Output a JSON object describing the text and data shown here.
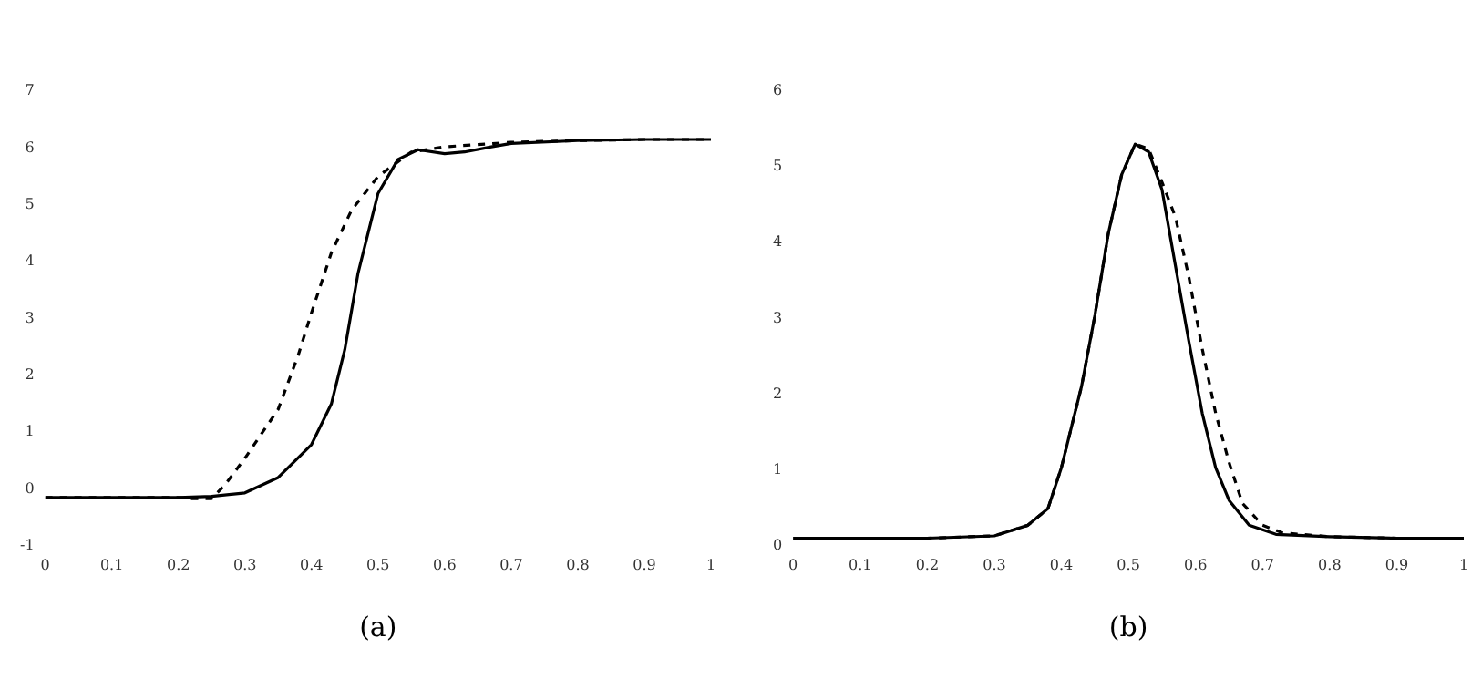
{
  "chart_data": [
    {
      "type": "line",
      "xlabel": "(a)",
      "xlim": [
        0,
        1
      ],
      "xticks": [
        0,
        0.1,
        0.2,
        0.3,
        0.4,
        0.5,
        0.6,
        0.7,
        0.8,
        0.9,
        1
      ],
      "ylim": [
        -1,
        7
      ],
      "yticks": [
        -1,
        0,
        1,
        2,
        3,
        4,
        5,
        6,
        7
      ],
      "grid": false,
      "legend": false,
      "marker": "none",
      "series": [
        {
          "color": "#000000",
          "line_style": "solid",
          "x": [
            0,
            0.1,
            0.2,
            0.25,
            0.3,
            0.35,
            0.4,
            0.43,
            0.45,
            0.47,
            0.5,
            0.53,
            0.56,
            0.6,
            0.63,
            0.67,
            0.7,
            0.8,
            0.9,
            1
          ],
          "values": [
            -0.15,
            -0.15,
            -0.15,
            -0.13,
            -0.07,
            0.2,
            0.78,
            1.5,
            2.45,
            3.8,
            5.2,
            5.8,
            5.97,
            5.9,
            5.93,
            6.02,
            6.08,
            6.13,
            6.15,
            6.15
          ]
        },
        {
          "color": "#000000",
          "line_style": "dashed",
          "x": [
            0,
            0.1,
            0.2,
            0.22,
            0.25,
            0.27,
            0.3,
            0.35,
            0.38,
            0.4,
            0.43,
            0.46,
            0.5,
            0.55,
            0.6,
            0.7,
            0.8,
            0.9,
            1
          ],
          "values": [
            -0.15,
            -0.15,
            -0.15,
            -0.17,
            -0.17,
            0.07,
            0.54,
            1.4,
            2.35,
            3.1,
            4.16,
            4.9,
            5.5,
            5.93,
            6.02,
            6.1,
            6.13,
            6.15,
            6.15
          ]
        }
      ]
    },
    {
      "type": "line",
      "xlabel": "(b)",
      "xlim": [
        0,
        1
      ],
      "xticks": [
        0,
        0.1,
        0.2,
        0.3,
        0.4,
        0.5,
        0.6,
        0.7,
        0.8,
        0.9,
        1
      ],
      "ylim": [
        0,
        6
      ],
      "yticks": [
        0,
        1,
        2,
        3,
        4,
        5,
        6
      ],
      "grid": false,
      "legend": false,
      "marker": "none",
      "series": [
        {
          "color": "#000000",
          "line_style": "solid",
          "x": [
            0,
            0.1,
            0.2,
            0.3,
            0.35,
            0.38,
            0.4,
            0.43,
            0.45,
            0.47,
            0.49,
            0.51,
            0.53,
            0.55,
            0.57,
            0.59,
            0.61,
            0.63,
            0.65,
            0.68,
            0.72,
            0.8,
            0.9,
            1
          ],
          "values": [
            0.1,
            0.1,
            0.1,
            0.13,
            0.27,
            0.49,
            1.03,
            2.1,
            3.04,
            4.12,
            4.9,
            5.3,
            5.2,
            4.7,
            3.7,
            2.7,
            1.75,
            1.03,
            0.6,
            0.27,
            0.15,
            0.12,
            0.1,
            0.1
          ]
        },
        {
          "color": "#000000",
          "line_style": "dashed",
          "x": [
            0,
            0.1,
            0.2,
            0.3,
            0.35,
            0.38,
            0.4,
            0.43,
            0.45,
            0.47,
            0.49,
            0.51,
            0.53,
            0.55,
            0.57,
            0.59,
            0.61,
            0.63,
            0.65,
            0.67,
            0.7,
            0.73,
            0.8,
            0.9,
            1
          ],
          "values": [
            0.1,
            0.1,
            0.1,
            0.13,
            0.27,
            0.49,
            1.03,
            2.1,
            3.04,
            4.12,
            4.9,
            5.3,
            5.24,
            4.8,
            4.34,
            3.55,
            2.6,
            1.75,
            1.1,
            0.56,
            0.27,
            0.17,
            0.12,
            0.1,
            0.1
          ]
        }
      ]
    }
  ]
}
